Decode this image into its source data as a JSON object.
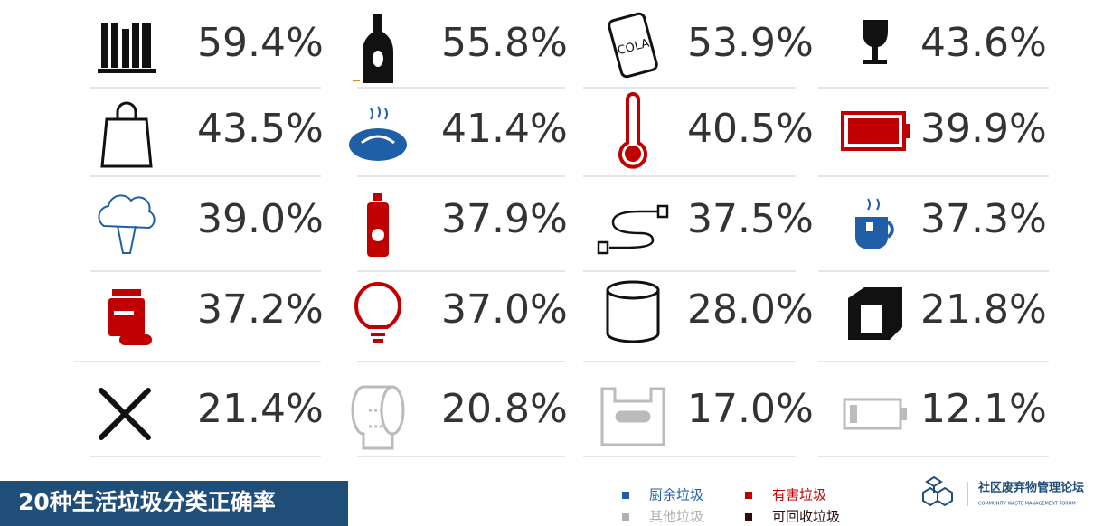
{
  "grid": {
    "values": [
      "59.4%",
      "55.8%",
      "53.9%",
      "43.6%",
      "43.5%",
      "41.4%",
      "40.5%",
      "39.9%",
      "39.0%",
      "37.9%",
      "37.5%",
      "37.3%",
      "37.2%",
      "37.0%",
      "28.0%",
      "21.8%",
      "21.4%",
      "20.8%",
      "17.0%",
      "12.1%"
    ],
    "can_label": "COLA"
  },
  "title": "20种生活垃圾分类正确率",
  "legend": [
    {
      "label": "厨余垃圾",
      "color": "#1f5fa8"
    },
    {
      "label": "有害垃圾",
      "color": "#c00000"
    },
    {
      "label": "其他垃圾",
      "color": "#b0b0b0"
    },
    {
      "label": "可回收垃圾",
      "color": "#2a0d0d"
    }
  ],
  "logo": {
    "name": "社区废弃物管理论坛",
    "subtitle": "COMMUNITY WASTE MANAGEMENT FORUM"
  }
}
